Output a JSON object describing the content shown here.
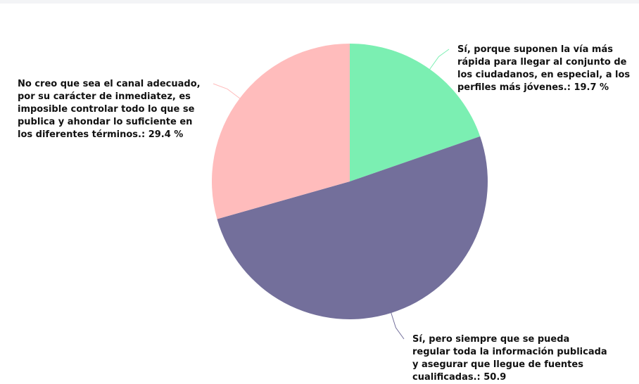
{
  "chart_data": {
    "type": "pie",
    "categories": [
      "Sí, porque suponen la vía más rápida para llegar al conjunto de los ciudadanos, en especial, a los perfiles más jóvenes.",
      "Sí, pero siempre que se pueda regular toda la información publicada y asegurar que llegue de fuentes cualificadas.",
      "No creo que sea el canal adecuado, por su carácter de inmediatez, es imposible controlar todo lo que se publica y ahondar lo suficiente en los diferentes términos."
    ],
    "values": [
      19.7,
      50.9,
      29.4
    ],
    "value_labels": [
      ": 19.7 %",
      ": 50.9",
      ": 29.4 %"
    ],
    "colors": [
      "#7befb2",
      "#736f9b",
      "#ffbcbc"
    ]
  }
}
